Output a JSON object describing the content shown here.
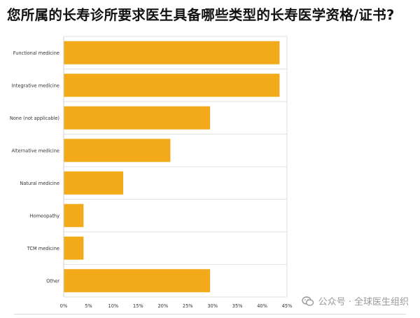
{
  "title": "您所属的长寿诊所要求医生具备哪些类型的长寿医学资格/证书?",
  "watermark": "公众号 · 全球医生组织",
  "chart_data": {
    "type": "bar",
    "orientation": "horizontal",
    "categories": [
      "Functional medicine",
      "Integrative medicine",
      "None (not applicable)",
      "Alternative medicine",
      "Natural medicine",
      "Homeopathy",
      "TCM medicine",
      "Other"
    ],
    "values": [
      43.5,
      43.5,
      29.5,
      21.5,
      12,
      4,
      4,
      29.5
    ],
    "xticks": [
      "0%",
      "5%",
      "10%",
      "15%",
      "20%",
      "25%",
      "30%",
      "35%",
      "40%",
      "45%"
    ],
    "xlim": [
      0,
      45
    ],
    "bar_color": "#F2A91A",
    "grid": true
  }
}
